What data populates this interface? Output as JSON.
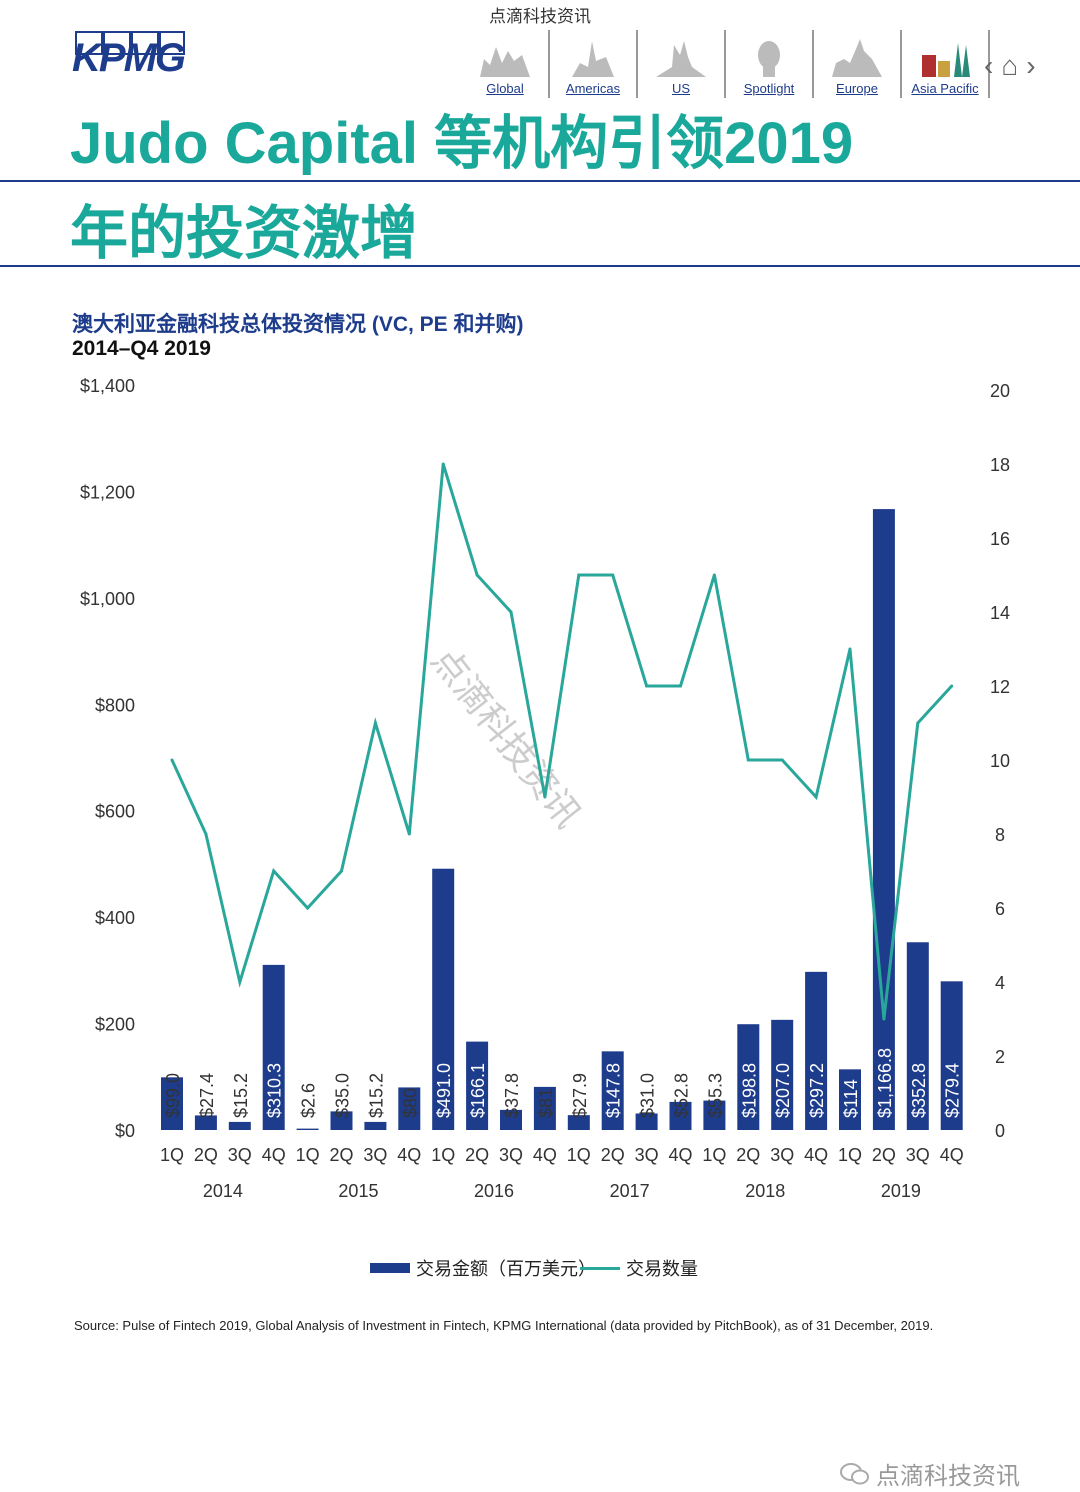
{
  "watermark_top": "点滴科技资讯",
  "logo": "KPMG",
  "nav": [
    "Global",
    "Americas",
    "US",
    "Spotlight",
    "Europe",
    "Asia Pacific"
  ],
  "nav_arrows": {
    "prev": "chevron-left-icon",
    "home": "home-icon",
    "next": "chevron-right-icon"
  },
  "title_line1": "Judo Capital 等机构引领2019",
  "title_line2": "年的投资激增",
  "subtitle": "澳大利亚金融科技总体投资情况 (VC, PE 和并购)",
  "period": "2014–Q4 2019",
  "chart_data": {
    "type": "bar+line",
    "title": "澳大利亚金融科技总体投资情况 (VC, PE 和并购)",
    "categories": [
      "1Q",
      "2Q",
      "3Q",
      "4Q",
      "1Q",
      "2Q",
      "3Q",
      "4Q",
      "1Q",
      "2Q",
      "3Q",
      "4Q",
      "1Q",
      "2Q",
      "3Q",
      "4Q",
      "1Q",
      "2Q",
      "3Q",
      "4Q",
      "1Q",
      "2Q",
      "3Q",
      "4Q"
    ],
    "years": [
      "2014",
      "2015",
      "2016",
      "2017",
      "2018",
      "2019"
    ],
    "series": [
      {
        "name": "交易金额（百万美元）",
        "type": "bar",
        "axis": "left",
        "color": "#1e3c8c",
        "values": [
          99.0,
          27.4,
          15.2,
          310.3,
          2.6,
          35.0,
          15.2,
          80,
          491.0,
          166.1,
          37.8,
          81,
          27.9,
          147.8,
          31.0,
          52.8,
          55.3,
          198.8,
          207.0,
          297.2,
          114,
          1166.8,
          352.8,
          279.4
        ],
        "labels": [
          "$99.0",
          "$27.4",
          "$15.2",
          "$310.3",
          "$2.6",
          "$35.0",
          "$15.2",
          "$80",
          "$491.0",
          "$166.1",
          "$37.8",
          "$81",
          "$27.9",
          "$147.8",
          "$31.0",
          "$52.8",
          "$55.3",
          "$198.8",
          "$207.0",
          "$297.2",
          "$114",
          "$1,166.8",
          "$352.8",
          "$279.4"
        ]
      },
      {
        "name": "交易数量",
        "type": "line",
        "axis": "right",
        "color": "#2aa79b",
        "values": [
          10,
          8,
          4,
          7,
          6,
          7,
          11,
          8,
          18,
          15,
          14,
          9,
          15,
          15,
          12,
          12,
          15,
          10,
          10,
          9,
          13,
          3,
          11,
          12
        ]
      }
    ],
    "y_left": {
      "ylim": [
        0,
        1400
      ],
      "ticks": [
        0,
        200,
        400,
        600,
        800,
        1000,
        1200,
        1400
      ],
      "tick_labels": [
        "$0",
        "$200",
        "$400",
        "$600",
        "$800",
        "$1,000",
        "$1,200",
        "$1,400"
      ]
    },
    "y_right": {
      "ylim": [
        0,
        20
      ],
      "ticks": [
        0,
        2,
        4,
        6,
        8,
        10,
        12,
        14,
        16,
        18,
        20
      ],
      "tick_labels": [
        "0",
        "2",
        "4",
        "6",
        "8",
        "10",
        "12",
        "14",
        "16",
        "18",
        "20"
      ]
    },
    "grid": false,
    "legend_position": "bottom"
  },
  "chart_watermark": "点滴科技资讯",
  "source": "Source: Pulse of Fintech 2019, Global Analysis of Investment in Fintech, KPMG International (data provided by PitchBook), as of 31 December, 2019.",
  "footer": "点滴科技资讯"
}
